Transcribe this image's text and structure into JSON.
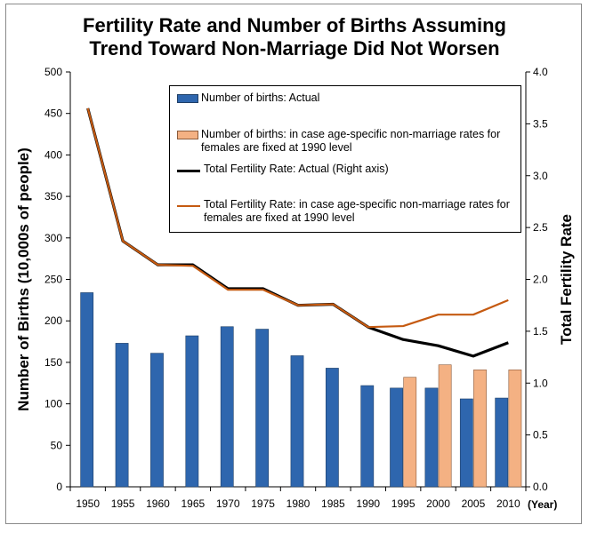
{
  "title_line1": "Fertility Rate and Number of Births Assuming",
  "title_line2": "Trend Toward Non-Marriage Did Not Worsen",
  "colors": {
    "actual_births": "#2e66ae",
    "fixed_births": "#f4b183",
    "tfr_actual": "#000000",
    "tfr_fixed": "#c55a11"
  },
  "legend": {
    "births_actual": "Number of births: Actual",
    "births_fixed": "Number of births: in case age-specific non-marriage rates for females are fixed at 1990 level",
    "tfr_actual": "Total Fertility Rate: Actual (Right axis)",
    "tfr_fixed": "Total Fertility Rate: in case age-specific non-marriage rates for females are fixed at 1990 level"
  },
  "chart_data": {
    "type": "bar+line",
    "title": "Fertility Rate and Number of Births Assuming Trend Toward Non-Marriage Did Not Worsen",
    "categories": [
      "1950",
      "1955",
      "1960",
      "1965",
      "1970",
      "1975",
      "1980",
      "1985",
      "1990",
      "1995",
      "2000",
      "2005",
      "2010"
    ],
    "x_unit": "(Year)",
    "ylabel": "Number of Births (10,000s of people)",
    "y2label": "Total Fertility Rate",
    "ylim": [
      0,
      500
    ],
    "y_ticks": [
      "0",
      "50",
      "100",
      "150",
      "200",
      "250",
      "300",
      "350",
      "400",
      "450",
      "500"
    ],
    "y2lim": [
      0,
      4.0
    ],
    "y2_ticks": [
      "0.0",
      "0.5",
      "1.0",
      "1.5",
      "2.0",
      "2.5",
      "3.0",
      "3.5",
      "4.0"
    ],
    "series": [
      {
        "name": "Number of births: Actual",
        "type": "bar",
        "axis": "left",
        "values": [
          234,
          173,
          161,
          182,
          193,
          190,
          158,
          143,
          122,
          119,
          119,
          106,
          107
        ]
      },
      {
        "name": "Number of births: in case age-specific non-marriage rates for females are fixed at 1990 level",
        "type": "bar",
        "axis": "left",
        "values": [
          null,
          null,
          null,
          null,
          null,
          null,
          null,
          null,
          null,
          132,
          147,
          141,
          141
        ]
      },
      {
        "name": "Total Fertility Rate: Actual (Right axis)",
        "type": "line",
        "axis": "right",
        "values": [
          3.65,
          2.37,
          2.14,
          2.14,
          1.91,
          1.91,
          1.75,
          1.76,
          1.54,
          1.42,
          1.36,
          1.26,
          1.39
        ]
      },
      {
        "name": "Total Fertility Rate: in case age-specific non-marriage rates for females are fixed at 1990 level",
        "type": "line",
        "axis": "right",
        "values": [
          3.65,
          2.37,
          2.14,
          2.13,
          1.9,
          1.9,
          1.75,
          1.76,
          1.54,
          1.55,
          1.66,
          1.66,
          1.8
        ]
      }
    ]
  }
}
